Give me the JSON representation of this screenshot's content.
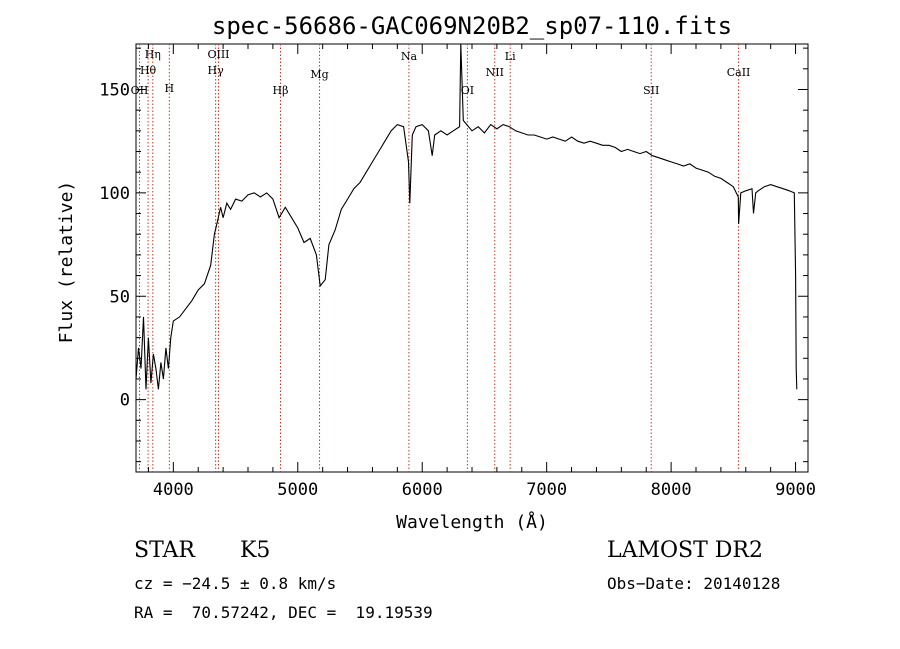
{
  "chart_data": {
    "type": "line",
    "title": "spec-56686-GAC069N20B2_sp07-110.fits",
    "xlabel": "Wavelength (Å)",
    "ylabel": "Flux (relative)",
    "xlim": [
      3700,
      9100
    ],
    "ylim": [
      -35,
      172
    ],
    "x_ticks": [
      4000,
      5000,
      6000,
      7000,
      8000,
      9000
    ],
    "y_ticks": [
      0,
      50,
      100,
      150
    ],
    "grid": false,
    "series": [
      {
        "points": [
          [
            3700,
            10
          ],
          [
            3720,
            25
          ],
          [
            3740,
            15
          ],
          [
            3760,
            40
          ],
          [
            3780,
            5
          ],
          [
            3800,
            30
          ],
          [
            3820,
            8
          ],
          [
            3840,
            22
          ],
          [
            3860,
            15
          ],
          [
            3880,
            5
          ],
          [
            3900,
            18
          ],
          [
            3920,
            10
          ],
          [
            3940,
            25
          ],
          [
            3960,
            15
          ],
          [
            3980,
            30
          ],
          [
            4000,
            38
          ],
          [
            4050,
            40
          ],
          [
            4100,
            44
          ],
          [
            4150,
            48
          ],
          [
            4200,
            53
          ],
          [
            4250,
            56
          ],
          [
            4300,
            65
          ],
          [
            4330,
            80
          ],
          [
            4350,
            85
          ],
          [
            4380,
            93
          ],
          [
            4400,
            88
          ],
          [
            4430,
            95
          ],
          [
            4460,
            92
          ],
          [
            4500,
            97
          ],
          [
            4550,
            96
          ],
          [
            4600,
            99
          ],
          [
            4650,
            100
          ],
          [
            4700,
            98
          ],
          [
            4750,
            100
          ],
          [
            4800,
            97
          ],
          [
            4850,
            88
          ],
          [
            4900,
            93
          ],
          [
            4950,
            88
          ],
          [
            5000,
            83
          ],
          [
            5050,
            76
          ],
          [
            5100,
            78
          ],
          [
            5150,
            70
          ],
          [
            5180,
            55
          ],
          [
            5220,
            58
          ],
          [
            5250,
            75
          ],
          [
            5300,
            82
          ],
          [
            5350,
            92
          ],
          [
            5400,
            97
          ],
          [
            5450,
            102
          ],
          [
            5500,
            105
          ],
          [
            5550,
            110
          ],
          [
            5600,
            115
          ],
          [
            5650,
            120
          ],
          [
            5700,
            125
          ],
          [
            5750,
            130
          ],
          [
            5800,
            133
          ],
          [
            5850,
            132
          ],
          [
            5890,
            115
          ],
          [
            5900,
            95
          ],
          [
            5920,
            128
          ],
          [
            5950,
            132
          ],
          [
            6000,
            133
          ],
          [
            6050,
            130
          ],
          [
            6080,
            118
          ],
          [
            6100,
            128
          ],
          [
            6150,
            130
          ],
          [
            6200,
            128
          ],
          [
            6250,
            130
          ],
          [
            6300,
            132
          ],
          [
            6310,
            172
          ],
          [
            6330,
            135
          ],
          [
            6400,
            130
          ],
          [
            6450,
            132
          ],
          [
            6500,
            129
          ],
          [
            6550,
            133
          ],
          [
            6600,
            131
          ],
          [
            6650,
            133
          ],
          [
            6700,
            132
          ],
          [
            6750,
            130
          ],
          [
            6800,
            129
          ],
          [
            6850,
            128
          ],
          [
            6900,
            128
          ],
          [
            6950,
            127
          ],
          [
            7000,
            126
          ],
          [
            7050,
            127
          ],
          [
            7100,
            126
          ],
          [
            7150,
            125
          ],
          [
            7200,
            127
          ],
          [
            7250,
            125
          ],
          [
            7300,
            124
          ],
          [
            7350,
            125
          ],
          [
            7400,
            124
          ],
          [
            7450,
            123
          ],
          [
            7500,
            123
          ],
          [
            7550,
            122
          ],
          [
            7600,
            120
          ],
          [
            7650,
            121
          ],
          [
            7700,
            120
          ],
          [
            7750,
            119
          ],
          [
            7800,
            120
          ],
          [
            7850,
            118
          ],
          [
            7900,
            117
          ],
          [
            7950,
            116
          ],
          [
            8000,
            115
          ],
          [
            8050,
            114
          ],
          [
            8100,
            113
          ],
          [
            8150,
            114
          ],
          [
            8200,
            112
          ],
          [
            8250,
            111
          ],
          [
            8300,
            110
          ],
          [
            8350,
            108
          ],
          [
            8400,
            107
          ],
          [
            8450,
            105
          ],
          [
            8500,
            103
          ],
          [
            8540,
            98
          ],
          [
            8542,
            85
          ],
          [
            8560,
            100
          ],
          [
            8600,
            101
          ],
          [
            8650,
            102
          ],
          [
            8662,
            90
          ],
          [
            8680,
            100
          ],
          [
            8700,
            101
          ],
          [
            8750,
            103
          ],
          [
            8800,
            104
          ],
          [
            8850,
            103
          ],
          [
            8900,
            102
          ],
          [
            8950,
            101
          ],
          [
            8990,
            100
          ],
          [
            9000,
            60
          ],
          [
            9005,
            15
          ],
          [
            9010,
            5
          ]
        ]
      }
    ],
    "lines": [
      {
        "wavelength": 3728,
        "labels": [
          "OII"
        ]
      },
      {
        "wavelength": 3797,
        "labels": [
          "Hθ"
        ]
      },
      {
        "wavelength": 3835,
        "labels": [
          "Hη"
        ]
      },
      {
        "wavelength": 3968,
        "labels": [
          "H"
        ]
      },
      {
        "wavelength": 4340,
        "labels": [
          "Hγ"
        ]
      },
      {
        "wavelength": 4363,
        "labels": [
          "OIII"
        ]
      },
      {
        "wavelength": 4861,
        "labels": [
          "Hβ"
        ]
      },
      {
        "wavelength": 5175,
        "labels": [
          "Mg"
        ]
      },
      {
        "wavelength": 5893,
        "labels": [
          "Na"
        ]
      },
      {
        "wavelength": 6363,
        "labels": [
          "OI"
        ]
      },
      {
        "wavelength": 6583,
        "labels": [
          "NII"
        ]
      },
      {
        "wavelength": 6707,
        "labels": [
          "Li"
        ]
      },
      {
        "wavelength": 7840,
        "labels": [
          "SII"
        ]
      },
      {
        "wavelength": 8542,
        "labels": [
          "CaII"
        ]
      }
    ]
  },
  "info": {
    "class": "STAR",
    "subclass": "K5",
    "survey": "LAMOST DR2",
    "cz": "cz = −24.5 ± 0.8 km/s",
    "obs_date": "Obs−Date: 20140128",
    "coords": "RA =  70.57242, DEC =  19.19539"
  }
}
